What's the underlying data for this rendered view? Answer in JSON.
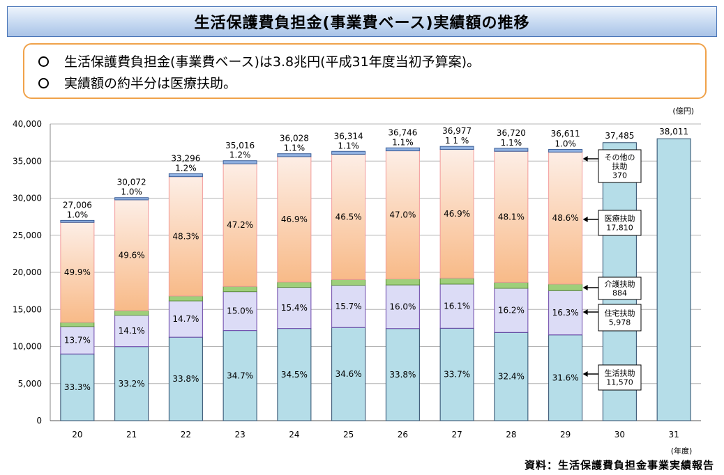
{
  "title": "生活保護費負担金(事業費ベース)実績額の推移",
  "summary": [
    "生活保護費負担金(事業費ベース)は3.8兆円(平成31年度当初予算案)。",
    "実績額の約半分は医療扶助。"
  ],
  "source": "資料：生活保護費負担金事業実績報告",
  "colors": {
    "living": "#b5dde8",
    "housing": "#dcdcf6",
    "nursing": "#9ecf7a",
    "medical": "#f8ba88",
    "other": "#8fb0e0",
    "total_bar": "#b5dde8",
    "grid": "#b4b4b4"
  },
  "chart_data": {
    "type": "bar",
    "stacked": true,
    "unit_label": "(億円)",
    "xlabel": "(年度)",
    "ylim": [
      0,
      40000
    ],
    "yticks": [
      "0",
      "5,000",
      "10,000",
      "15,000",
      "20,000",
      "25,000",
      "30,000",
      "35,000",
      "40,000"
    ],
    "categories": [
      "20",
      "21",
      "22",
      "23",
      "24",
      "25",
      "26",
      "27",
      "28",
      "29",
      "30",
      "31"
    ],
    "totals": [
      27006,
      30072,
      33296,
      35016,
      36028,
      36314,
      36746,
      36977,
      36720,
      36611,
      37485,
      38011
    ],
    "total_labels": [
      "27,006",
      "30,072",
      "33,296",
      "35,016",
      "36,028",
      "36,314",
      "36,746",
      "36,977",
      "36,720",
      "36,611",
      "37,485",
      "38,011"
    ],
    "series": [
      {
        "name": "生活扶助",
        "key": "living",
        "pct": [
          33.3,
          33.2,
          33.8,
          34.7,
          34.5,
          34.6,
          33.8,
          33.7,
          32.4,
          31.6
        ],
        "labels": [
          "33.3%",
          "33.2%",
          "33.8%",
          "34.7%",
          "34.5%",
          "34.6%",
          "33.8%",
          "33.7%",
          "32.4%",
          "31.6%"
        ]
      },
      {
        "name": "住宅扶助",
        "key": "housing",
        "pct": [
          13.7,
          14.1,
          14.7,
          15.0,
          15.4,
          15.7,
          16.0,
          16.1,
          16.2,
          16.3
        ],
        "labels": [
          "13.7%",
          "14.1%",
          "14.7%",
          "15.0%",
          "15.4%",
          "15.7%",
          "16.0%",
          "16.1%",
          "16.2%",
          "16.3%"
        ]
      },
      {
        "name": "介護扶助",
        "key": "nursing",
        "pct": [
          2.1,
          2.1,
          2.0,
          2.0,
          2.0,
          2.1,
          2.2,
          2.2,
          2.2,
          2.4
        ],
        "labels": [
          "2.1%",
          "2.1%",
          "2.0%",
          "2.0%",
          "2.0%",
          "2.1%",
          "2.2%",
          "2.2%",
          "2.2%",
          "2.4%"
        ]
      },
      {
        "name": "医療扶助",
        "key": "medical",
        "pct": [
          49.9,
          49.6,
          48.3,
          47.2,
          46.9,
          46.5,
          47.0,
          46.9,
          48.1,
          48.6
        ],
        "labels": [
          "49.9%",
          "49.6%",
          "48.3%",
          "47.2%",
          "46.9%",
          "46.5%",
          "47.0%",
          "46.9%",
          "48.1%",
          "48.6%"
        ]
      },
      {
        "name": "その他の扶助",
        "key": "other",
        "pct": [
          1.0,
          1.0,
          1.2,
          1.2,
          1.1,
          1.1,
          1.1,
          1.1,
          1.1,
          1.0
        ],
        "labels": [
          "1.0%",
          "1.0%",
          "1.2%",
          "1.2%",
          "1.1%",
          "1.1%",
          "1.1%",
          "1 1 %",
          "1.1%",
          "1.0%"
        ]
      }
    ],
    "callouts_fy29": [
      {
        "series": "その他の扶助",
        "name": "その他の\n扶助",
        "value": "370"
      },
      {
        "series": "医療扶助",
        "name": "医療扶助",
        "value": "17,810"
      },
      {
        "series": "介護扶助",
        "name": "介護扶助",
        "value": "884"
      },
      {
        "series": "住宅扶助",
        "name": "住宅扶助",
        "value": "5,978"
      },
      {
        "series": "生活扶助",
        "name": "生活扶助",
        "value": "11,570"
      }
    ]
  }
}
